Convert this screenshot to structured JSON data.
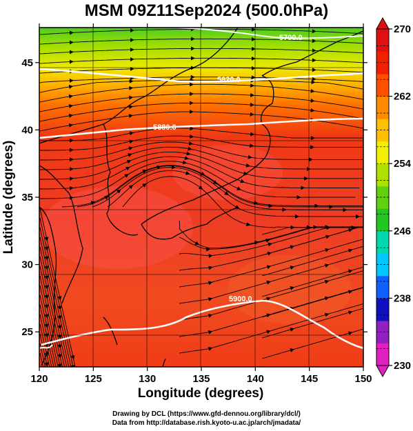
{
  "title": "MSM 09Z11Sep2024 (500.0hPa)",
  "x_axis": {
    "label": "Longitude (degrees)",
    "range": [
      120,
      150
    ],
    "ticks": [
      120,
      125,
      130,
      135,
      140,
      145,
      150
    ]
  },
  "y_axis": {
    "label": "Latitude  (degrees)",
    "range": [
      22.4,
      47.6
    ],
    "ticks": [
      25,
      30,
      35,
      40,
      45
    ]
  },
  "colorbar": {
    "range": [
      230,
      270
    ],
    "labeled_ticks": [
      230,
      238,
      246,
      254,
      262,
      270
    ],
    "colors": [
      "#e020c0",
      "#9020c0",
      "#1010c0",
      "#1060ff",
      "#00c8ff",
      "#00d8b0",
      "#20c820",
      "#60d010",
      "#b0e000",
      "#f0f000",
      "#ffc000",
      "#ff8c00",
      "#ff5000",
      "#f02000",
      "#e01010"
    ]
  },
  "contours": {
    "labels": [
      "5700.0",
      "5820.0",
      "5880.0",
      "5900.0",
      "5900.0",
      "5900.0"
    ],
    "color": "#ffffff"
  },
  "credit": {
    "line1": "Drawing by DCL (https://www.gfd-dennou.org/library/dcl/)",
    "line2": "Data from http://database.rish.kyoto-u.ac.jp/arch/jmadata/"
  }
}
